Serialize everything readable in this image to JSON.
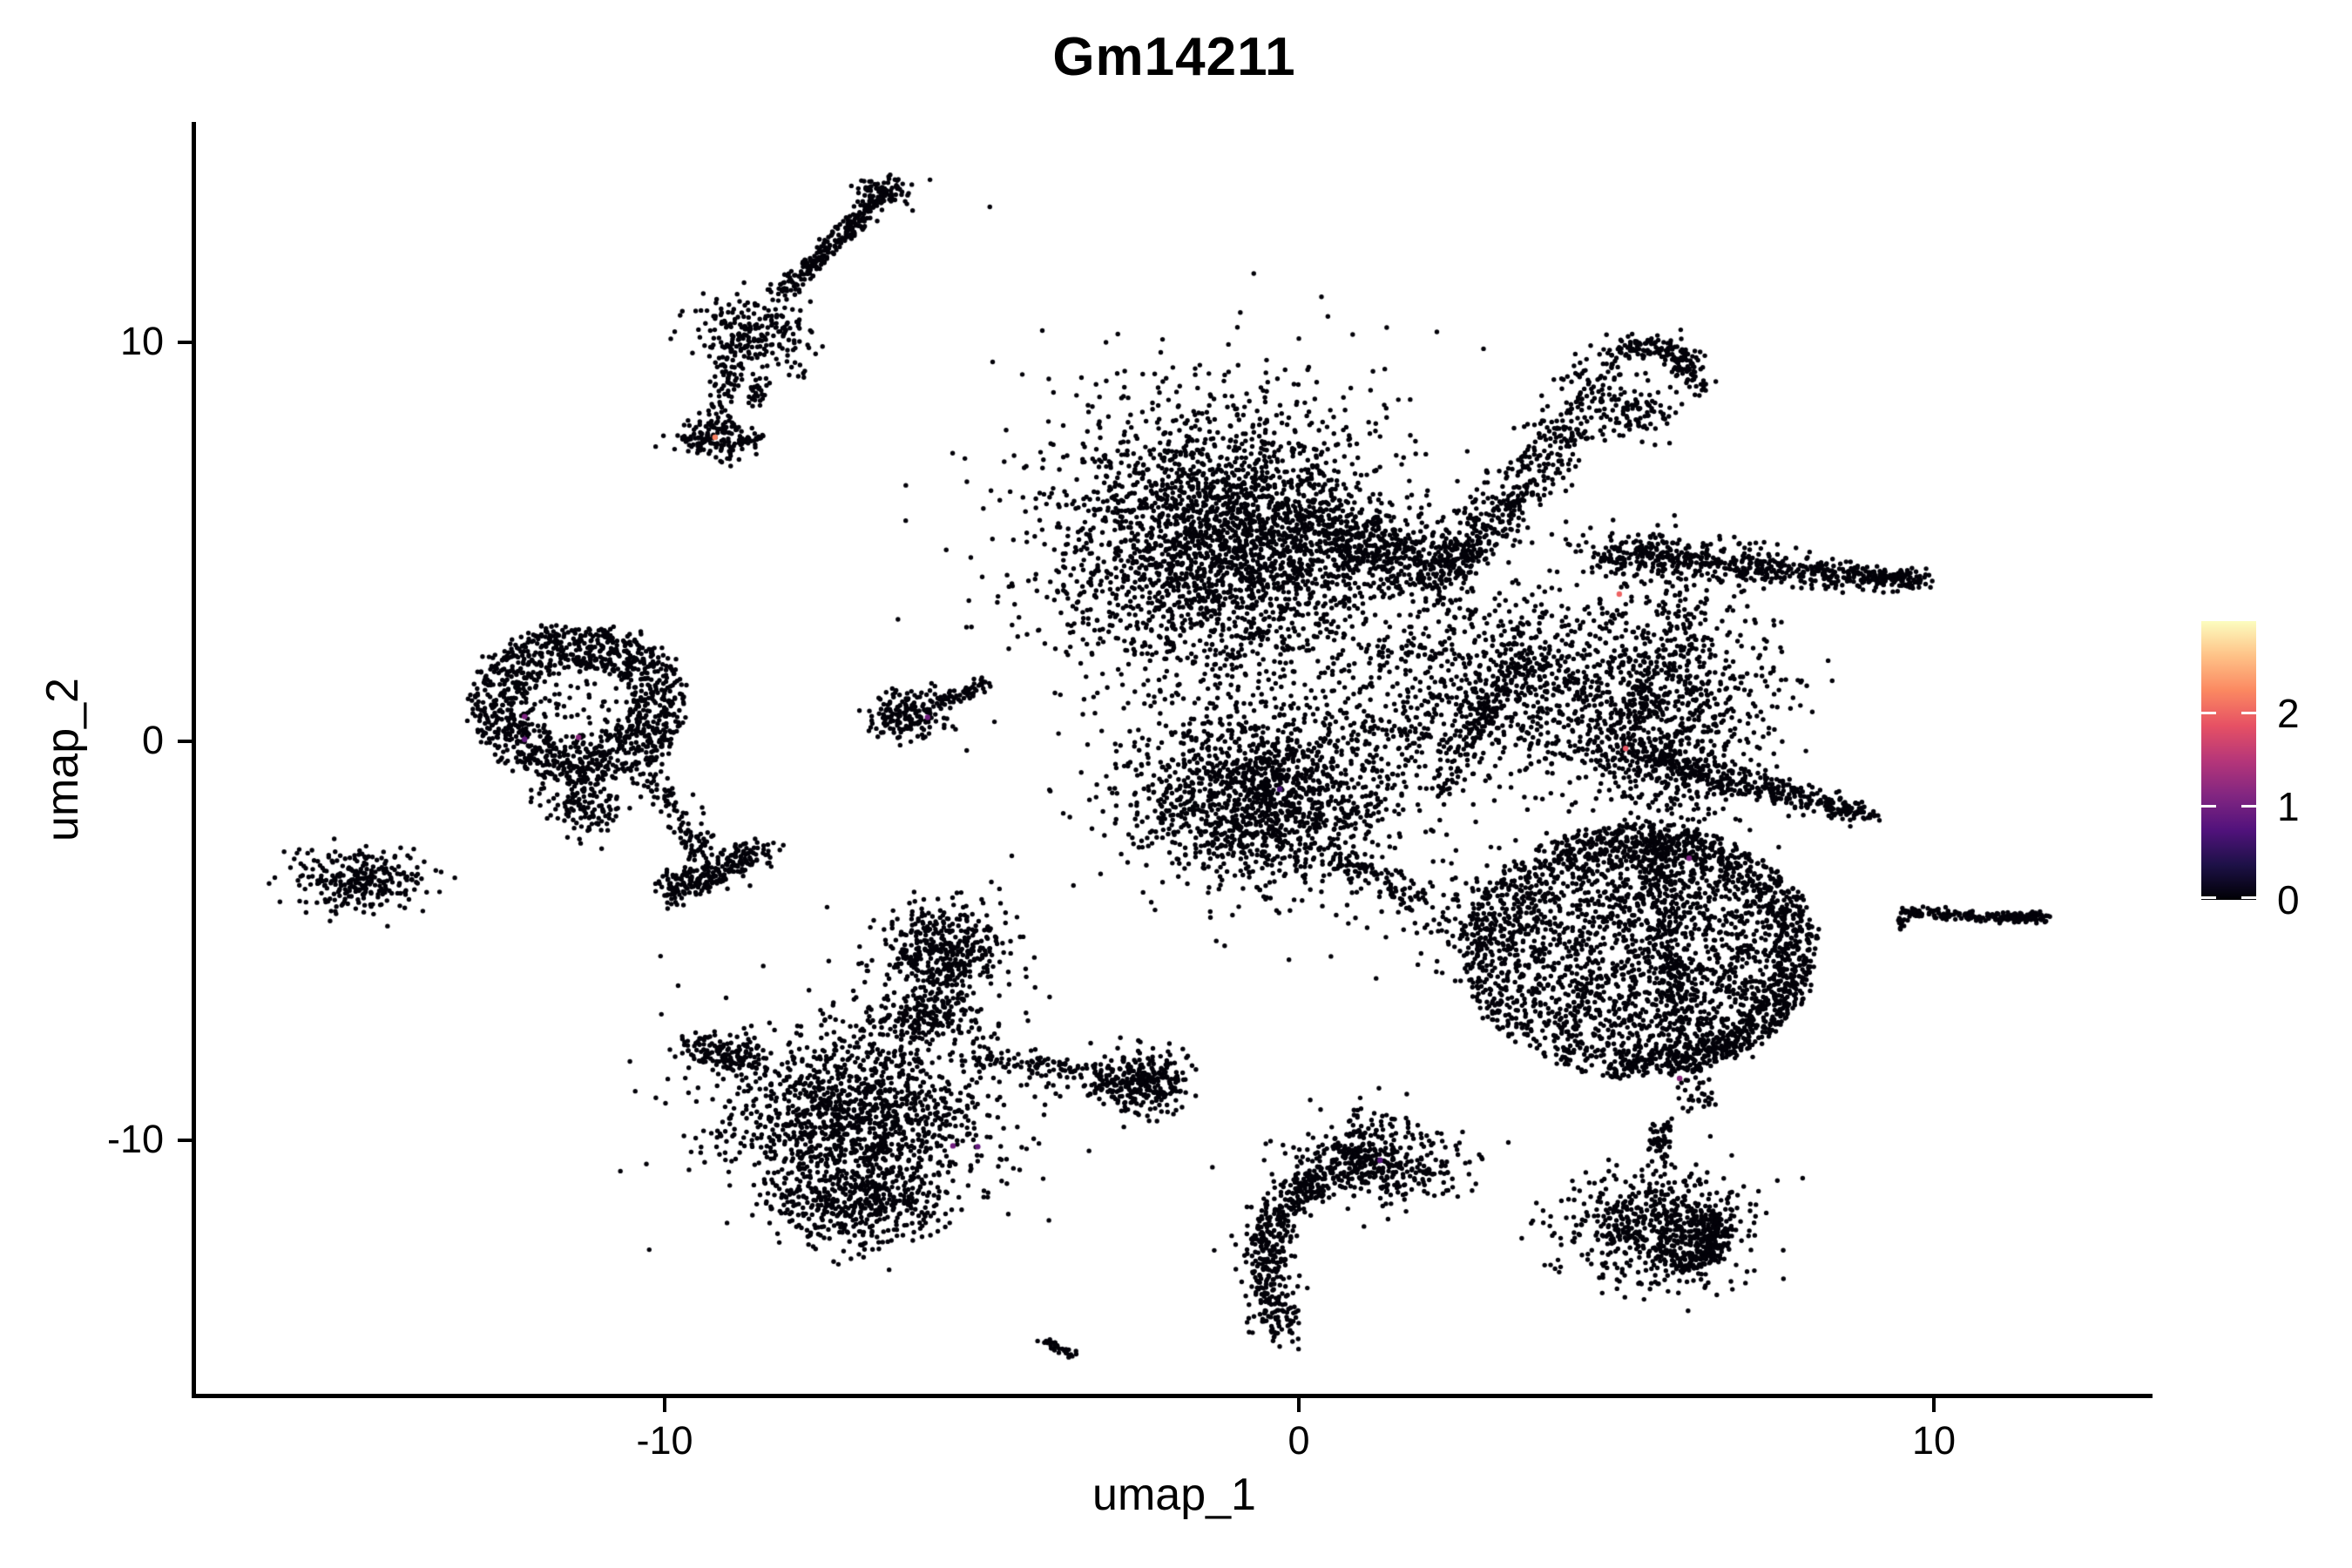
{
  "title": "Gm14211",
  "axes": {
    "x_label": "umap_1",
    "y_label": "umap_2",
    "x_ticks": [
      {
        "label": "-10",
        "value": -10
      },
      {
        "label": "0",
        "value": 0
      },
      {
        "label": "10",
        "value": 10
      }
    ],
    "y_ticks": [
      {
        "label": "10",
        "value": 10
      },
      {
        "label": "0",
        "value": 0
      },
      {
        "label": "-10",
        "value": -10
      }
    ]
  },
  "legend": {
    "ticks": [
      {
        "label": "2",
        "value": 2
      },
      {
        "label": "1",
        "value": 1
      },
      {
        "label": "0",
        "value": 0
      }
    ],
    "tick_mark_color": "#ffffff"
  },
  "chart_data": {
    "type": "scatter",
    "title": "Gm14211",
    "xlabel": "umap_1",
    "ylabel": "umap_2",
    "xlim": [
      -17.4,
      13.45
    ],
    "ylim": [
      -16.4,
      15.5
    ],
    "x_tick_values": [
      -10,
      0,
      10
    ],
    "y_tick_values": [
      -10,
      0,
      10
    ],
    "grid": false,
    "legend_position": "right",
    "point_color": "#030209",
    "point_radius_px": 2.7,
    "colorbar": {
      "range": [
        0,
        3
      ],
      "tick_values": [
        0,
        1,
        2
      ],
      "palette": "magma",
      "stops": [
        [
          0.0,
          "#000004"
        ],
        [
          0.125,
          "#1D1147"
        ],
        [
          0.25,
          "#51127C"
        ],
        [
          0.375,
          "#822681"
        ],
        [
          0.5,
          "#B63679"
        ],
        [
          0.625,
          "#E65164"
        ],
        [
          0.75,
          "#FB8861"
        ],
        [
          0.875,
          "#FEC287"
        ],
        [
          1.0,
          "#FCFDBF"
        ]
      ]
    },
    "clusters": [
      {
        "type": "line",
        "p": [
          -8.15,
          11.2
        ],
        "q": [
          -6.56,
          13.7
        ],
        "s": 0.1,
        "n": 260
      },
      {
        "type": "blob",
        "c": [
          -6.53,
          13.78
        ],
        "sx": 0.22,
        "sy": 0.16,
        "n": 70
      },
      {
        "type": "blob",
        "c": [
          -8.62,
          10.15
        ],
        "sx": 0.5,
        "sy": 0.48,
        "n": 230
      },
      {
        "type": "line",
        "p": [
          -8.95,
          9.5
        ],
        "q": [
          -9.18,
          8.2
        ],
        "s": 0.12,
        "n": 55
      },
      {
        "type": "line",
        "p": [
          -8.5,
          9.1
        ],
        "q": [
          -8.62,
          8.35
        ],
        "s": 0.08,
        "n": 30
      },
      {
        "type": "blob",
        "c": [
          -9.25,
          7.6
        ],
        "sx": 0.3,
        "sy": 0.26,
        "n": 140
      },
      {
        "type": "line",
        "p": [
          -8.85,
          7.5
        ],
        "q": [
          -8.45,
          7.62
        ],
        "s": 0.05,
        "n": 25
      },
      {
        "type": "blob",
        "c": [
          -1.15,
          5.0
        ],
        "sx": 1.3,
        "sy": 1.75,
        "n": 2500
      },
      {
        "type": "blob",
        "c": [
          -1.1,
          5.2
        ],
        "sx": 1.9,
        "sy": 2.3,
        "n": 350
      },
      {
        "type": "line",
        "p": [
          0.3,
          5.3
        ],
        "q": [
          2.3,
          4.25
        ],
        "s": 0.45,
        "n": 450
      },
      {
        "type": "curve",
        "pts": [
          [
            2.25,
            4.2
          ],
          [
            3.4,
            6.2
          ],
          [
            5.0,
            9.65
          ]
        ],
        "s": 0.26,
        "n": 520
      },
      {
        "type": "curve",
        "pts": [
          [
            5.0,
            9.8
          ],
          [
            5.9,
            9.7
          ],
          [
            6.2,
            8.7
          ]
        ],
        "s": 0.17,
        "n": 160
      },
      {
        "type": "blob",
        "c": [
          5.35,
          8.2
        ],
        "sx": 0.3,
        "sy": 0.28,
        "n": 90
      },
      {
        "type": "line",
        "p": [
          4.8,
          4.7
        ],
        "q": [
          9.85,
          4.0
        ],
        "s": 0.3,
        "n": 650,
        "taper": true
      },
      {
        "type": "blob",
        "c": [
          5.8,
          0.8
        ],
        "sx": 0.85,
        "sy": 1.6,
        "n": 1000
      },
      {
        "type": "blob",
        "c": [
          3.2,
          1.4
        ],
        "sx": 1.15,
        "sy": 1.25,
        "n": 850
      },
      {
        "type": "line",
        "p": [
          4.8,
          -0.2
        ],
        "q": [
          9.0,
          -1.85
        ],
        "s": 0.28,
        "n": 420,
        "taper": true
      },
      {
        "type": "line",
        "p": [
          5.55,
          -2.4
        ],
        "q": [
          6.3,
          -9.4
        ],
        "s": 0.16,
        "n": 260,
        "dense_start": true
      },
      {
        "type": "curve",
        "pts": [
          [
            3.5,
            2.0
          ],
          [
            2.9,
            0.6
          ],
          [
            2.25,
            -1.3
          ]
        ],
        "s": 0.13,
        "n": 130
      },
      {
        "type": "blob",
        "c": [
          2.6,
          -4.5
        ],
        "sx": 0.75,
        "sy": 0.55,
        "n": 60
      },
      {
        "type": "blob",
        "c": [
          1.4,
          0.2
        ],
        "sx": 0.6,
        "sy": 0.9,
        "n": 80
      },
      {
        "type": "ring",
        "c": [
          -11.35,
          0.95
        ],
        "rx": 1.7,
        "ry": 1.95,
        "inner": 0.45,
        "n": 1150
      },
      {
        "type": "blob",
        "c": [
          -11.3,
          -1.55
        ],
        "sx": 0.33,
        "sy": 0.38,
        "n": 150
      },
      {
        "type": "line",
        "p": [
          -10.3,
          -0.6
        ],
        "q": [
          -9.35,
          -2.9
        ],
        "s": 0.18,
        "n": 110
      },
      {
        "type": "blob",
        "c": [
          -11.3,
          1.0
        ],
        "sx": 0.5,
        "sy": 0.6,
        "n": 60
      },
      {
        "type": "blob",
        "c": [
          -6.15,
          0.65
        ],
        "sx": 0.32,
        "sy": 0.34,
        "n": 170
      },
      {
        "type": "line",
        "p": [
          -5.75,
          0.95
        ],
        "q": [
          -4.88,
          1.42
        ],
        "s": 0.09,
        "n": 60
      },
      {
        "type": "blob",
        "c": [
          -14.75,
          -3.5
        ],
        "sx": 0.55,
        "sy": 0.4,
        "n": 270
      },
      {
        "type": "line",
        "p": [
          -9.9,
          -3.85
        ],
        "q": [
          -8.45,
          -2.75
        ],
        "s": 0.16,
        "n": 190
      },
      {
        "type": "blob",
        "c": [
          -9.55,
          -3.5
        ],
        "sx": 0.26,
        "sy": 0.2,
        "n": 70
      },
      {
        "type": "blob",
        "c": [
          -0.6,
          -1.35
        ],
        "sx": 1.0,
        "sy": 1.05,
        "n": 1350
      },
      {
        "type": "line",
        "p": [
          0.5,
          -2.7
        ],
        "q": [
          1.85,
          -3.95
        ],
        "s": 0.18,
        "n": 110
      },
      {
        "type": "blob",
        "c": [
          -0.6,
          -1.3
        ],
        "sx": 1.5,
        "sy": 1.5,
        "n": 150
      },
      {
        "type": "disc",
        "c": [
          5.35,
          -5.25
        ],
        "rx": 2.8,
        "ry": 3.15,
        "n": 2400
      },
      {
        "type": "ringband",
        "c": [
          5.35,
          -5.25
        ],
        "rx": 2.8,
        "ry": 3.15,
        "band": [
          0.78,
          1.0
        ],
        "arc": [
          -100,
          120
        ],
        "n": 650
      },
      {
        "type": "blob",
        "c": [
          2.9,
          -4.3
        ],
        "sx": 0.65,
        "sy": 0.8,
        "n": 110
      },
      {
        "type": "line",
        "p": [
          9.55,
          -4.3
        ],
        "q": [
          11.85,
          -4.45
        ],
        "s": 0.06,
        "n": 210
      },
      {
        "type": "blob",
        "c": [
          9.5,
          -4.5
        ],
        "sx": 0.08,
        "sy": 0.12,
        "n": 15
      },
      {
        "type": "blob",
        "c": [
          -5.55,
          -5.3
        ],
        "sx": 0.55,
        "sy": 0.6,
        "n": 420
      },
      {
        "type": "blob",
        "c": [
          -5.9,
          -6.9
        ],
        "sx": 0.5,
        "sy": 0.42,
        "n": 200
      },
      {
        "type": "blob",
        "c": [
          -7.0,
          -9.4
        ],
        "sx": 1.05,
        "sy": 1.05,
        "n": 1150
      },
      {
        "type": "line",
        "p": [
          -8.6,
          -8.0
        ],
        "q": [
          -9.55,
          -7.6
        ],
        "s": 0.22,
        "n": 130
      },
      {
        "type": "line",
        "p": [
          -5.1,
          -7.9
        ],
        "q": [
          -3.0,
          -8.45
        ],
        "s": 0.16,
        "n": 110
      },
      {
        "type": "blob",
        "c": [
          -2.5,
          -8.55
        ],
        "sx": 0.4,
        "sy": 0.4,
        "n": 290
      },
      {
        "type": "blob",
        "c": [
          -6.95,
          -11.6
        ],
        "sx": 0.68,
        "sy": 0.58,
        "n": 430
      },
      {
        "type": "blob",
        "c": [
          -6.9,
          -8.9
        ],
        "sx": 1.5,
        "sy": 1.5,
        "n": 220
      },
      {
        "type": "blob",
        "c": [
          1.15,
          -10.6
        ],
        "sx": 0.65,
        "sy": 0.52,
        "n": 430
      },
      {
        "type": "curve",
        "pts": [
          [
            0.35,
            -10.9
          ],
          [
            -0.5,
            -12.6
          ],
          [
            -0.2,
            -14.9
          ]
        ],
        "s": 0.2,
        "n": 430
      },
      {
        "type": "blob",
        "c": [
          1.2,
          -9.4
        ],
        "sx": 0.4,
        "sy": 0.3,
        "n": 25
      },
      {
        "type": "blob",
        "c": [
          5.7,
          -12.2
        ],
        "sx": 0.7,
        "sy": 0.75,
        "n": 650
      },
      {
        "type": "ringband",
        "c": [
          5.8,
          -12.4
        ],
        "rx": 0.95,
        "ry": 0.95,
        "band": [
          0.6,
          1.0
        ],
        "arc": [
          -80,
          40
        ],
        "n": 180
      },
      {
        "type": "line",
        "p": [
          5.75,
          -9.6
        ],
        "q": [
          5.6,
          -10.4
        ],
        "s": 0.1,
        "n": 50
      },
      {
        "type": "line",
        "p": [
          -4.05,
          -15.0
        ],
        "q": [
          -3.55,
          -15.4
        ],
        "s": 0.05,
        "n": 32
      }
    ],
    "highlighted_points": [
      {
        "x": -9.2,
        "y": 7.62,
        "value": 2.2
      },
      {
        "x": -12.2,
        "y": 0.62,
        "value": 1.1
      },
      {
        "x": -12.2,
        "y": 0.05,
        "value": 0.9
      },
      {
        "x": -11.35,
        "y": 0.1,
        "value": 1.2
      },
      {
        "x": -5.85,
        "y": 0.6,
        "value": 1.0
      },
      {
        "x": 5.05,
        "y": 3.69,
        "value": 2.0
      },
      {
        "x": 5.15,
        "y": -0.18,
        "value": 1.9
      },
      {
        "x": 6.15,
        "y": -2.93,
        "value": 1.1
      },
      {
        "x": -5.45,
        "y": -10.14,
        "value": 1.0
      },
      {
        "x": -5.06,
        "y": -10.16,
        "value": 0.9
      },
      {
        "x": 6.0,
        "y": -8.45,
        "value": 1.2
      },
      {
        "x": 1.28,
        "y": -10.5,
        "value": 0.8
      },
      {
        "x": -0.3,
        "y": -1.2,
        "value": 0.7
      }
    ]
  }
}
